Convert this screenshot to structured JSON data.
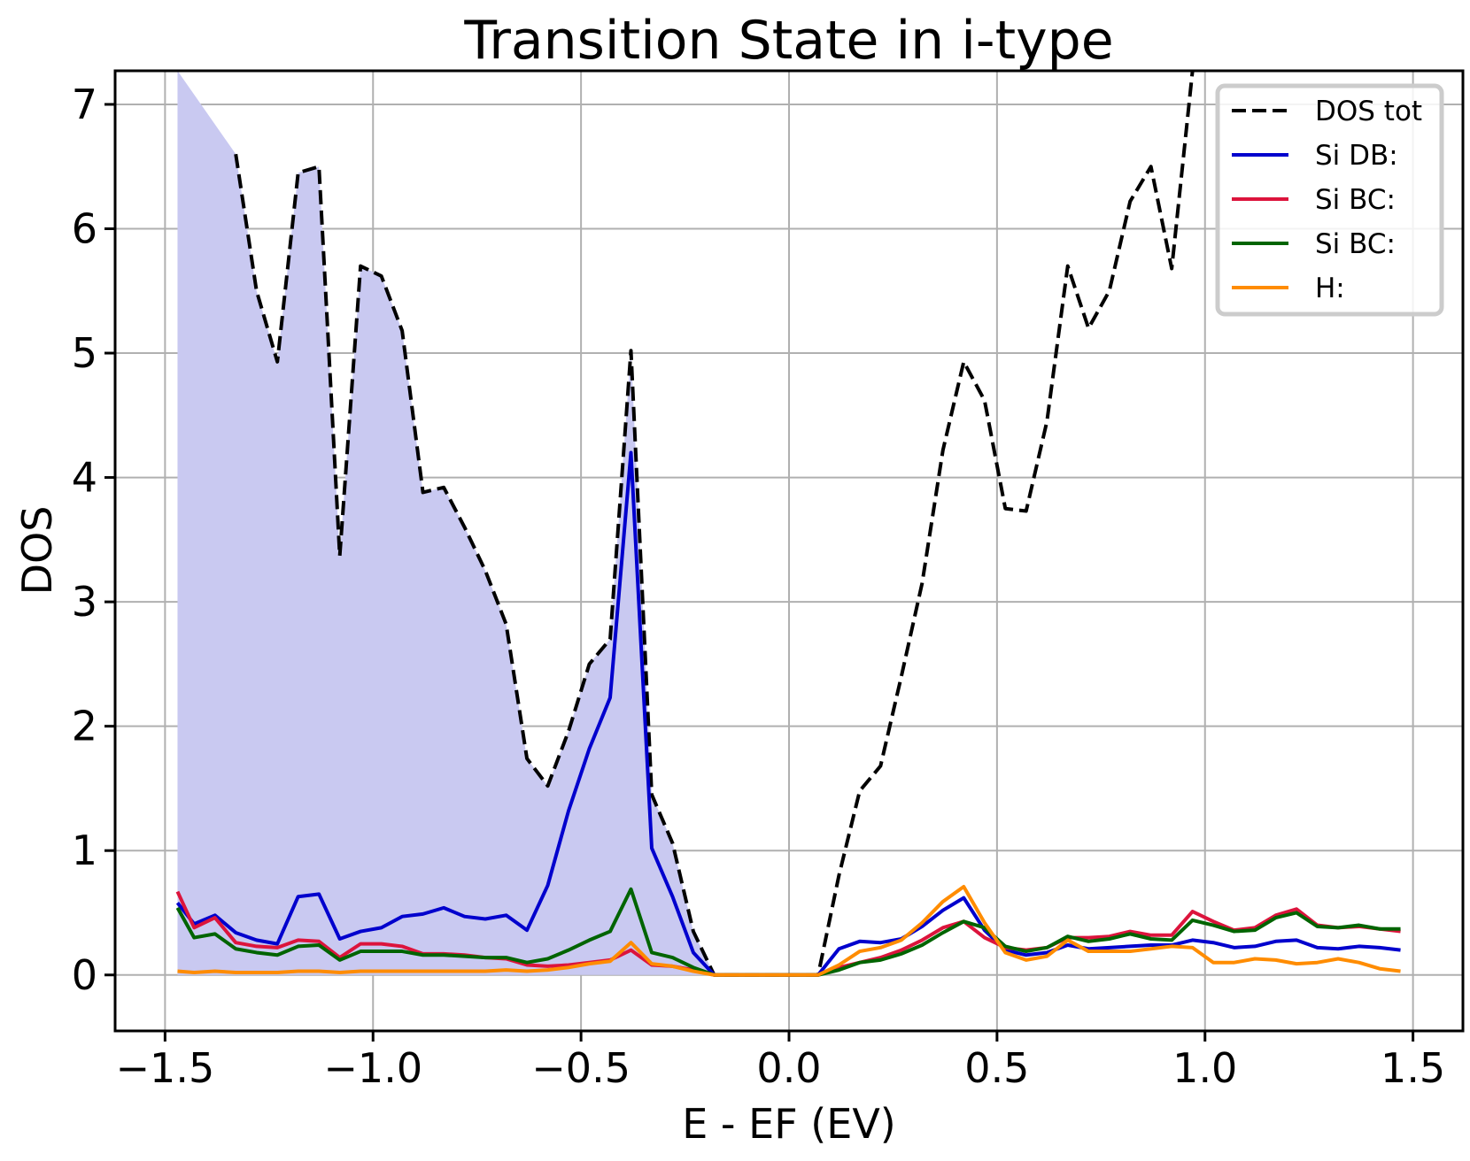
{
  "chart_data": {
    "type": "line",
    "title": "Transition State in i-type",
    "xlabel": "E - EF (EV)",
    "ylabel": "DOS",
    "xlim": [
      -1.62,
      1.62
    ],
    "ylim": [
      -0.45,
      7.27
    ],
    "xticks": [
      -1.5,
      -1.0,
      -0.5,
      0.0,
      0.5,
      1.0,
      1.5
    ],
    "xtick_labels": [
      "−1.5",
      "−1.0",
      "−0.5",
      "0.0",
      "0.5",
      "1.0",
      "1.5"
    ],
    "yticks": [
      0,
      1,
      2,
      3,
      4,
      5,
      6,
      7
    ],
    "ytick_labels": [
      "0",
      "1",
      "2",
      "3",
      "4",
      "5",
      "6",
      "7"
    ],
    "grid": true,
    "legend_position": "top-right",
    "fill": {
      "color": "#c9c9f1",
      "x": [
        -1.47,
        -1.47,
        -1.33,
        -1.28,
        -1.23,
        -1.18,
        -1.13,
        -1.08,
        -1.03,
        -0.98,
        -0.93,
        -0.88,
        -0.83,
        -0.78,
        -0.73,
        -0.68,
        -0.63,
        -0.58,
        -0.53,
        -0.48,
        -0.43,
        -0.38,
        -0.33,
        -0.28,
        -0.23,
        -0.18
      ],
      "y": [
        0,
        7.27,
        6.6,
        5.5,
        4.93,
        6.45,
        6.5,
        3.37,
        5.7,
        5.62,
        5.18,
        3.88,
        3.92,
        3.6,
        3.25,
        2.82,
        1.74,
        1.52,
        1.96,
        2.5,
        2.7,
        5.02,
        1.45,
        1.06,
        0.35,
        0
      ]
    },
    "series": [
      {
        "name": "DOS tot",
        "color": "#000000",
        "style": "dashed",
        "x": [
          -1.33,
          -1.28,
          -1.23,
          -1.18,
          -1.13,
          -1.08,
          -1.03,
          -0.98,
          -0.93,
          -0.88,
          -0.83,
          -0.78,
          -0.73,
          -0.68,
          -0.63,
          -0.58,
          -0.53,
          -0.48,
          -0.43,
          -0.38,
          -0.33,
          -0.28,
          -0.23,
          -0.18,
          -0.13,
          -0.08,
          -0.03,
          0.02,
          0.07,
          0.12,
          0.17,
          0.22,
          0.27,
          0.32,
          0.37,
          0.42,
          0.47,
          0.52,
          0.57,
          0.62,
          0.67,
          0.72,
          0.77,
          0.82,
          0.87,
          0.92,
          0.97
        ],
        "y": [
          6.6,
          5.5,
          4.93,
          6.45,
          6.5,
          3.37,
          5.7,
          5.62,
          5.18,
          3.88,
          3.92,
          3.6,
          3.25,
          2.82,
          1.74,
          1.52,
          1.96,
          2.5,
          2.7,
          5.02,
          1.45,
          1.06,
          0.35,
          0.0,
          0.0,
          0.0,
          0.0,
          0.0,
          0.0,
          0.8,
          1.48,
          1.68,
          2.4,
          3.15,
          4.22,
          4.93,
          4.62,
          3.75,
          3.73,
          4.45,
          5.7,
          5.2,
          5.5,
          6.22,
          6.5,
          5.68,
          7.27
        ]
      },
      {
        "name": "Si DB:",
        "color": "#0000cd",
        "style": "solid",
        "x": [
          -1.47,
          -1.43,
          -1.38,
          -1.33,
          -1.28,
          -1.23,
          -1.18,
          -1.13,
          -1.08,
          -1.03,
          -0.98,
          -0.93,
          -0.88,
          -0.83,
          -0.78,
          -0.73,
          -0.68,
          -0.63,
          -0.58,
          -0.53,
          -0.48,
          -0.43,
          -0.38,
          -0.33,
          -0.28,
          -0.23,
          -0.18,
          -0.13,
          -0.08,
          -0.03,
          0.02,
          0.07,
          0.12,
          0.17,
          0.22,
          0.27,
          0.32,
          0.37,
          0.42,
          0.47,
          0.52,
          0.57,
          0.62,
          0.67,
          0.72,
          0.77,
          0.82,
          0.87,
          0.92,
          0.97,
          1.02,
          1.07,
          1.12,
          1.17,
          1.22,
          1.27,
          1.32,
          1.37,
          1.42,
          1.47
        ],
        "y": [
          0.58,
          0.41,
          0.48,
          0.34,
          0.28,
          0.25,
          0.63,
          0.65,
          0.29,
          0.35,
          0.38,
          0.47,
          0.49,
          0.54,
          0.47,
          0.45,
          0.48,
          0.36,
          0.72,
          1.32,
          1.82,
          2.23,
          4.2,
          1.02,
          0.63,
          0.18,
          0.0,
          0.0,
          0.0,
          0.0,
          0.0,
          0.0,
          0.21,
          0.27,
          0.26,
          0.29,
          0.39,
          0.52,
          0.62,
          0.36,
          0.2,
          0.16,
          0.18,
          0.24,
          0.21,
          0.22,
          0.23,
          0.24,
          0.24,
          0.28,
          0.26,
          0.22,
          0.23,
          0.27,
          0.28,
          0.22,
          0.21,
          0.23,
          0.22,
          0.2
        ]
      },
      {
        "name": "Si BC:",
        "color": "#dc143c",
        "style": "solid",
        "x": [
          -1.47,
          -1.43,
          -1.38,
          -1.33,
          -1.28,
          -1.23,
          -1.18,
          -1.13,
          -1.08,
          -1.03,
          -0.98,
          -0.93,
          -0.88,
          -0.83,
          -0.78,
          -0.73,
          -0.68,
          -0.63,
          -0.58,
          -0.53,
          -0.48,
          -0.43,
          -0.38,
          -0.33,
          -0.28,
          -0.23,
          -0.18,
          -0.13,
          -0.08,
          -0.03,
          0.02,
          0.07,
          0.12,
          0.17,
          0.22,
          0.27,
          0.32,
          0.37,
          0.42,
          0.47,
          0.52,
          0.57,
          0.62,
          0.67,
          0.72,
          0.77,
          0.82,
          0.87,
          0.92,
          0.97,
          1.02,
          1.07,
          1.12,
          1.17,
          1.22,
          1.27,
          1.32,
          1.37,
          1.42,
          1.47
        ],
        "y": [
          0.67,
          0.38,
          0.46,
          0.26,
          0.23,
          0.22,
          0.28,
          0.27,
          0.14,
          0.25,
          0.25,
          0.23,
          0.17,
          0.17,
          0.16,
          0.14,
          0.13,
          0.08,
          0.07,
          0.08,
          0.1,
          0.12,
          0.2,
          0.08,
          0.07,
          0.04,
          0.0,
          0.0,
          0.0,
          0.0,
          0.0,
          0.0,
          0.06,
          0.1,
          0.14,
          0.2,
          0.28,
          0.38,
          0.43,
          0.3,
          0.22,
          0.2,
          0.22,
          0.3,
          0.3,
          0.31,
          0.35,
          0.32,
          0.32,
          0.51,
          0.43,
          0.36,
          0.38,
          0.48,
          0.53,
          0.4,
          0.38,
          0.39,
          0.37,
          0.35
        ]
      },
      {
        "name": "Si BC:",
        "color": "#006400",
        "style": "solid",
        "x": [
          -1.47,
          -1.43,
          -1.38,
          -1.33,
          -1.28,
          -1.23,
          -1.18,
          -1.13,
          -1.08,
          -1.03,
          -0.98,
          -0.93,
          -0.88,
          -0.83,
          -0.78,
          -0.73,
          -0.68,
          -0.63,
          -0.58,
          -0.53,
          -0.48,
          -0.43,
          -0.38,
          -0.33,
          -0.28,
          -0.23,
          -0.18,
          -0.13,
          -0.08,
          -0.03,
          0.02,
          0.07,
          0.12,
          0.17,
          0.22,
          0.27,
          0.32,
          0.37,
          0.42,
          0.47,
          0.52,
          0.57,
          0.62,
          0.67,
          0.72,
          0.77,
          0.82,
          0.87,
          0.92,
          0.97,
          1.02,
          1.07,
          1.12,
          1.17,
          1.22,
          1.27,
          1.32,
          1.37,
          1.42,
          1.47
        ],
        "y": [
          0.54,
          0.3,
          0.33,
          0.21,
          0.18,
          0.16,
          0.23,
          0.24,
          0.12,
          0.19,
          0.19,
          0.19,
          0.16,
          0.16,
          0.15,
          0.14,
          0.14,
          0.1,
          0.13,
          0.2,
          0.28,
          0.35,
          0.69,
          0.18,
          0.14,
          0.06,
          0.0,
          0.0,
          0.0,
          0.0,
          0.0,
          0.0,
          0.04,
          0.1,
          0.12,
          0.17,
          0.24,
          0.34,
          0.43,
          0.38,
          0.23,
          0.19,
          0.22,
          0.31,
          0.27,
          0.29,
          0.33,
          0.29,
          0.28,
          0.44,
          0.4,
          0.35,
          0.36,
          0.46,
          0.5,
          0.39,
          0.38,
          0.4,
          0.37,
          0.37
        ]
      },
      {
        "name": "H:",
        "color": "#ff8c00",
        "style": "solid",
        "x": [
          -1.47,
          -1.43,
          -1.38,
          -1.33,
          -1.28,
          -1.23,
          -1.18,
          -1.13,
          -1.08,
          -1.03,
          -0.98,
          -0.93,
          -0.88,
          -0.83,
          -0.78,
          -0.73,
          -0.68,
          -0.63,
          -0.58,
          -0.53,
          -0.48,
          -0.43,
          -0.38,
          -0.33,
          -0.28,
          -0.23,
          -0.18,
          -0.13,
          -0.08,
          -0.03,
          0.02,
          0.07,
          0.12,
          0.17,
          0.22,
          0.27,
          0.32,
          0.37,
          0.42,
          0.47,
          0.52,
          0.57,
          0.62,
          0.67,
          0.72,
          0.77,
          0.82,
          0.87,
          0.92,
          0.97,
          1.02,
          1.07,
          1.12,
          1.17,
          1.22,
          1.27,
          1.32,
          1.37,
          1.42,
          1.47
        ],
        "y": [
          0.03,
          0.02,
          0.03,
          0.02,
          0.02,
          0.02,
          0.03,
          0.03,
          0.02,
          0.03,
          0.03,
          0.03,
          0.03,
          0.03,
          0.03,
          0.03,
          0.04,
          0.03,
          0.04,
          0.06,
          0.09,
          0.11,
          0.26,
          0.09,
          0.07,
          0.03,
          0.0,
          0.0,
          0.0,
          0.0,
          0.0,
          0.0,
          0.08,
          0.19,
          0.22,
          0.28,
          0.42,
          0.59,
          0.71,
          0.42,
          0.18,
          0.12,
          0.15,
          0.28,
          0.19,
          0.19,
          0.19,
          0.21,
          0.23,
          0.22,
          0.1,
          0.1,
          0.13,
          0.12,
          0.09,
          0.1,
          0.13,
          0.1,
          0.05,
          0.03
        ]
      }
    ]
  }
}
